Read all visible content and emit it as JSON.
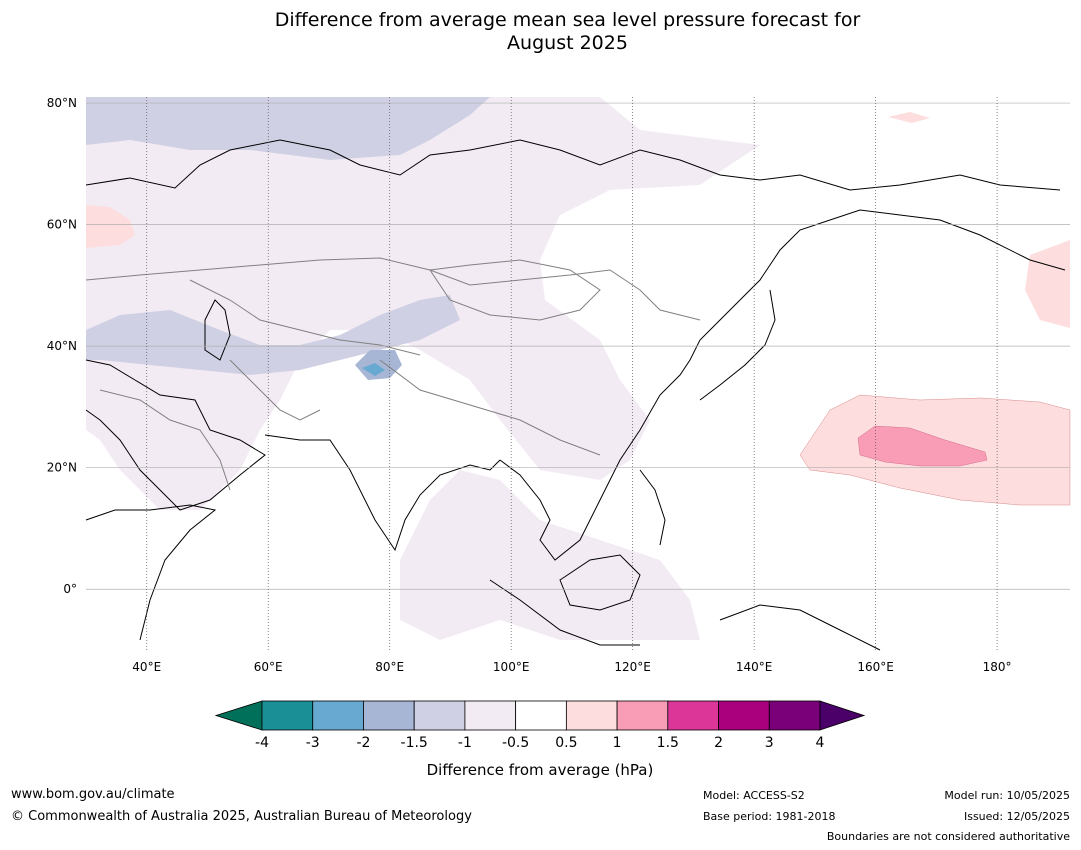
{
  "title": {
    "line1": "Difference from average mean sea level pressure forecast for",
    "line2": "August 2025"
  },
  "map": {
    "lat_labels": [
      "80°N",
      "60°N",
      "40°N",
      "20°N",
      "0°"
    ],
    "lon_labels": [
      "40°E",
      "60°E",
      "80°E",
      "100°E",
      "120°E",
      "140°E",
      "160°E",
      "180°"
    ],
    "lat_range": [
      -10,
      81
    ],
    "lon_range": [
      30,
      192
    ],
    "lat_values": [
      80,
      60,
      40,
      20,
      0
    ],
    "lon_values": [
      40,
      60,
      80,
      100,
      120,
      140,
      160,
      180
    ]
  },
  "colorbar": {
    "tick_labels": [
      "-4",
      "-3",
      "-2",
      "-1.5",
      "-1",
      "-0.5",
      "0.5",
      "1",
      "1.5",
      "2",
      "3",
      "4"
    ],
    "colors": [
      "#1b8f96",
      "#67a9d1",
      "#a7b6d4",
      "#d0d0e4",
      "#f3ebf4",
      "#ffffff",
      "#fddddd",
      "#f89db5",
      "#dc3699",
      "#ab007e",
      "#7a0079"
    ],
    "under_color": "#00705a",
    "over_color": "#4a0068",
    "label": "Difference from average (hPa)"
  },
  "footer": {
    "website": "www.bom.gov.au/climate",
    "copyright": "© Commonwealth of Australia 2025, Australian Bureau of Meteorology",
    "model": "Model: ACCESS-S2",
    "base_period": "Base period: 1981-2018",
    "model_run": "Model run: 10/05/2025",
    "issued": "Issued: 12/05/2025",
    "disclaimer": "Boundaries are not considered authoritative"
  }
}
